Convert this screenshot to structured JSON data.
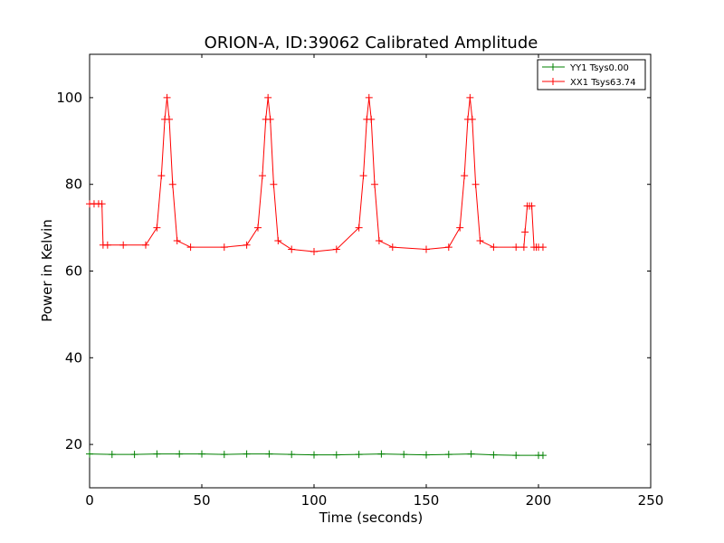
{
  "chart_data": {
    "type": "line",
    "title": "ORION-A, ID:39062 Calibrated Amplitude",
    "xlabel": "Time (seconds)",
    "ylabel": "Power in Kelvin",
    "xlim": [
      0,
      250
    ],
    "ylim": [
      10,
      110
    ],
    "xticks": [
      "0",
      "50",
      "100",
      "150",
      "200",
      "250"
    ],
    "yticks": [
      "20",
      "40",
      "60",
      "80",
      "100"
    ],
    "grid": false,
    "legend": {
      "location": "top-right"
    },
    "marker": "+",
    "series": [
      {
        "name": "YY1 Tsys0.00",
        "color": "#008000",
        "x": [
          0,
          10,
          20,
          30,
          40,
          50,
          60,
          70,
          80,
          90,
          100,
          110,
          120,
          130,
          140,
          150,
          160,
          170,
          180,
          190,
          200,
          202
        ],
        "y": [
          17.8,
          17.7,
          17.7,
          17.8,
          17.8,
          17.8,
          17.7,
          17.8,
          17.8,
          17.7,
          17.6,
          17.6,
          17.7,
          17.8,
          17.7,
          17.6,
          17.7,
          17.8,
          17.6,
          17.5,
          17.5,
          17.5
        ]
      },
      {
        "name": "XX1 Tsys63.74",
        "color": "#ff0000",
        "x": [
          0,
          2,
          4,
          5.5,
          6,
          8,
          15,
          25,
          30,
          32,
          33.5,
          34.5,
          35.5,
          37,
          39,
          45,
          60,
          70,
          75,
          77,
          78.5,
          79.5,
          80.5,
          82,
          84,
          90,
          100,
          110,
          120,
          122,
          123.5,
          124.5,
          125.5,
          127,
          129,
          135,
          150,
          160,
          165,
          167,
          168.5,
          169.5,
          170.5,
          172,
          174,
          180,
          190,
          193.5,
          194,
          195,
          196,
          197,
          198,
          199,
          200,
          202
        ],
        "y": [
          75.5,
          75.5,
          75.5,
          75.5,
          66,
          66,
          66,
          66,
          70,
          82,
          95,
          100,
          95,
          80,
          67,
          65.5,
          65.5,
          66,
          70,
          82,
          95,
          100,
          95,
          80,
          67,
          65,
          64.5,
          65,
          70,
          82,
          95,
          100,
          95,
          80,
          67,
          65.5,
          65,
          65.5,
          70,
          82,
          95,
          100,
          95,
          80,
          67,
          65.5,
          65.5,
          65.5,
          69,
          75,
          75,
          75,
          65.5,
          65.5,
          65.5,
          65.5
        ]
      }
    ]
  }
}
